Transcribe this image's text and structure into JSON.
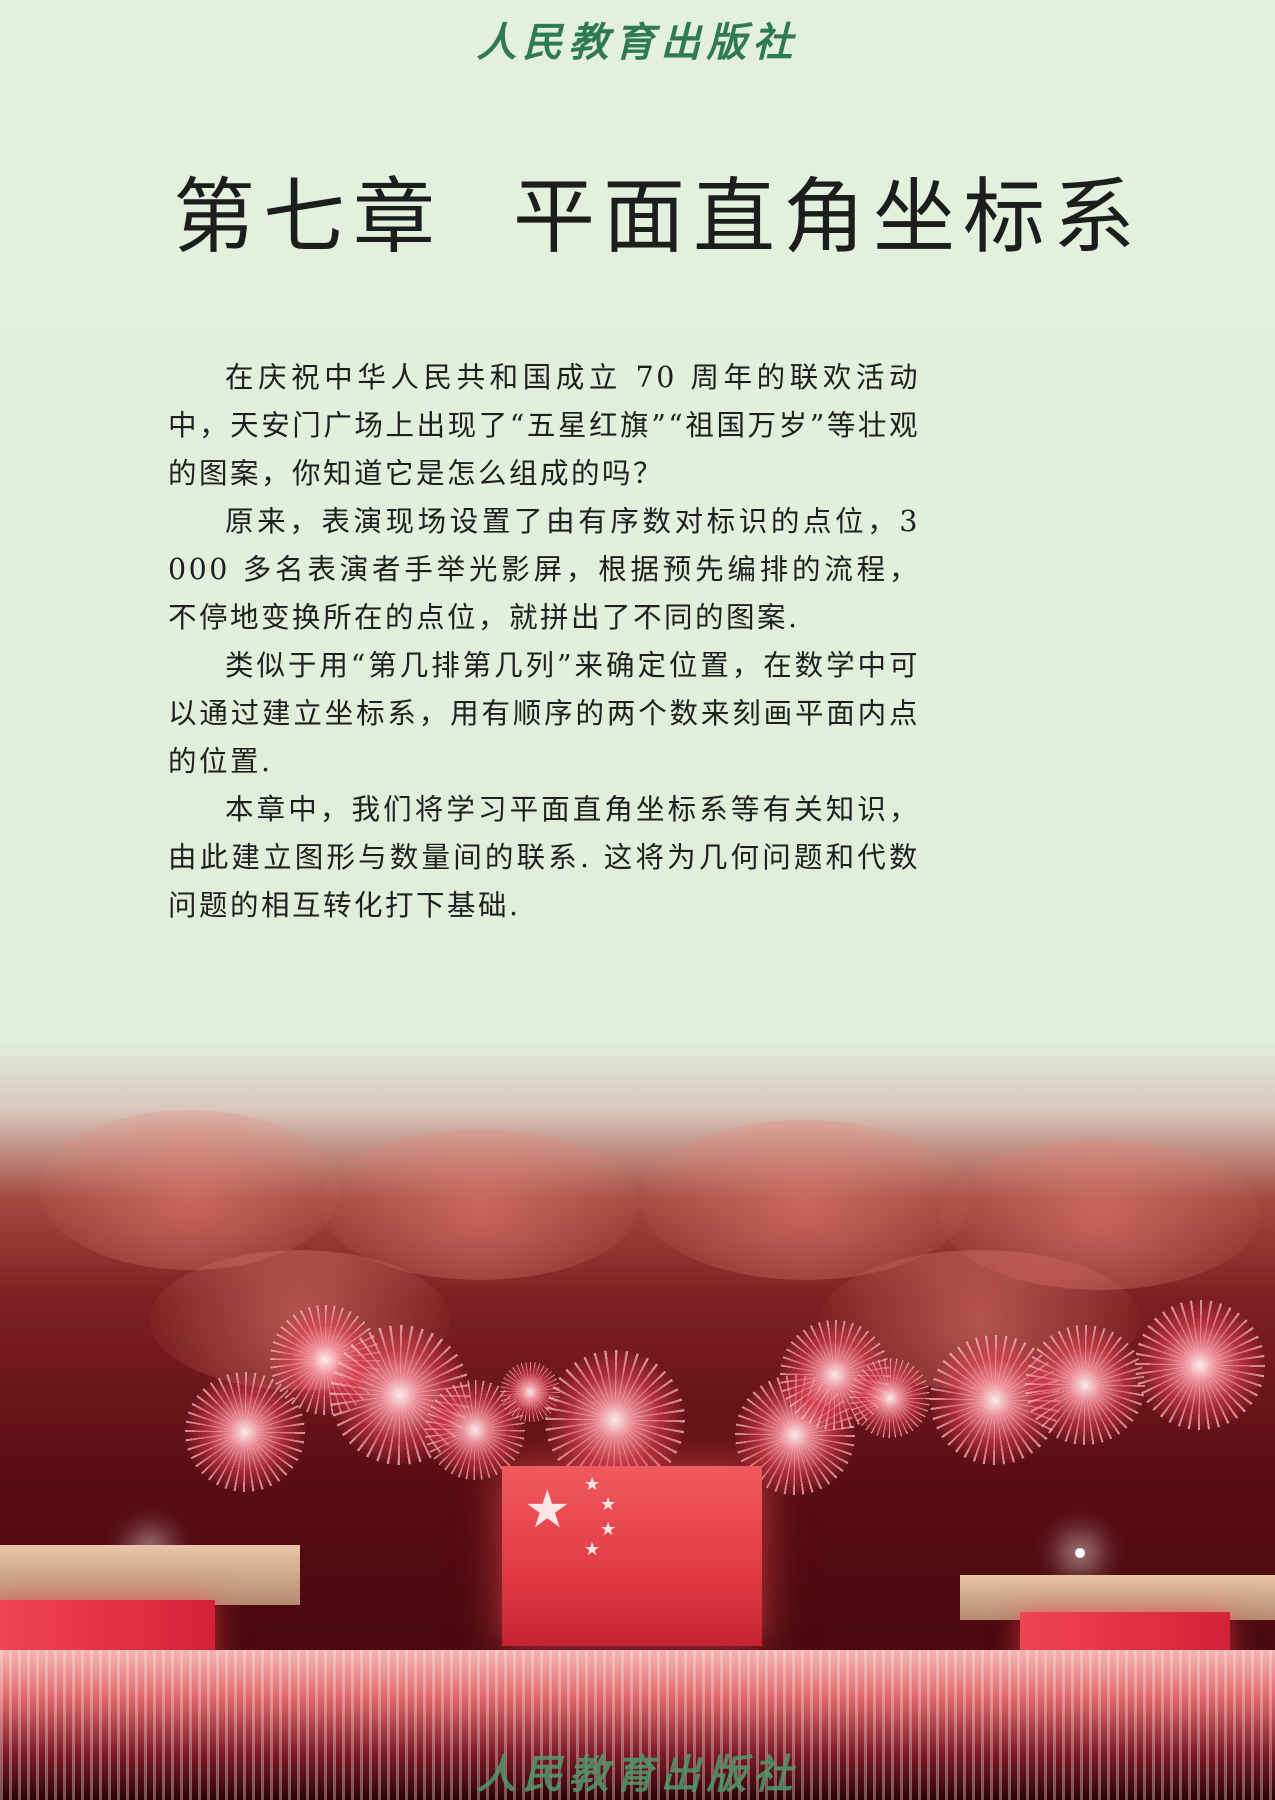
{
  "header": {
    "publisher_logo": "人民教育出版社"
  },
  "chapter": {
    "number": "第七章",
    "title": "平面直角坐标系"
  },
  "intro": {
    "paragraphs": [
      "在庆祝中华人民共和国成立 70 周年的联欢活动中，天安门广场上出现了“五星红旗”“祖国万岁”等壮观的图案，你知道它是怎么组成的吗？",
      "原来，表演现场设置了由有序数对标识的点位，3 000 多名表演者手举光影屏，根据预先编排的流程，不停地变换所在的点位，就拼出了不同的图案.",
      "类似于用“第几排第几列”来确定位置，在数学中可以通过建立坐标系，用有顺序的两个数来刻画平面内点的位置.",
      "本章中，我们将学习平面直角坐标系等有关知识，由此建立图形与数量间的联系. 这将为几何问题和代数问题的相互转化打下基础."
    ]
  },
  "footer": {
    "publisher_watermark": "人民教育出版社"
  },
  "colors": {
    "background": "#e3efdb",
    "publisher_green": "#2f7a53",
    "title_text": "#1d1d1d",
    "flag_red": "#e23a44"
  }
}
